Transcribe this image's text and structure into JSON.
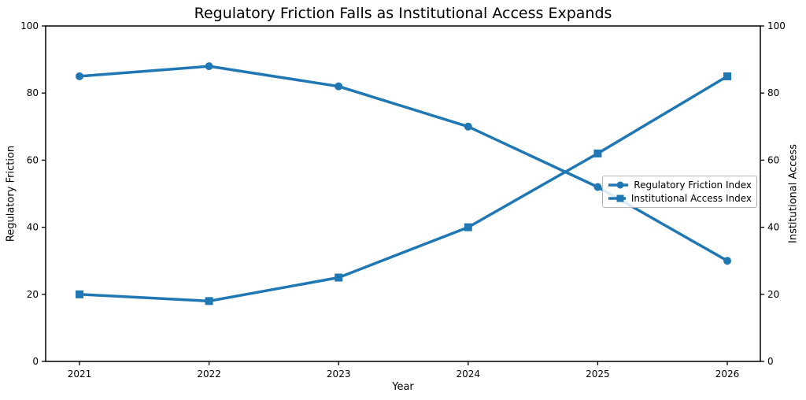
{
  "title": "Regulatory Friction Falls as Institutional Access Expands",
  "chart_data": {
    "type": "line",
    "title": "Regulatory Friction Falls as Institutional Access Expands",
    "xlabel": "Year",
    "ylabel_left": "Regulatory Friction",
    "ylabel_right": "Institutional Access",
    "x": [
      2021,
      2022,
      2023,
      2024,
      2025,
      2026
    ],
    "series": [
      {
        "name": "Regulatory Friction Index",
        "axis": "left",
        "marker": "circle",
        "color": "#1f77b4",
        "values": [
          85,
          88,
          82,
          70,
          52,
          30
        ]
      },
      {
        "name": "Institutional Access Index",
        "axis": "right",
        "marker": "square",
        "color": "#1f77b4",
        "values": [
          20,
          18,
          25,
          40,
          62,
          85
        ]
      }
    ],
    "ylim_left": [
      0,
      100
    ],
    "ylim_right": [
      0,
      100
    ],
    "yticks": [
      0,
      20,
      40,
      60,
      80,
      100
    ],
    "grid": false,
    "legend_position": "center right",
    "spine_color": "#000000",
    "background": "#ffffff"
  }
}
